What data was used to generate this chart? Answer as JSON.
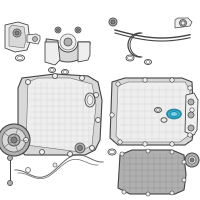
{
  "background_color": "#ffffff",
  "fig_width": 2.0,
  "fig_height": 2.0,
  "dpi": 100,
  "line_color": "#999999",
  "dark_line": "#666666",
  "darker_line": "#444444",
  "highlight_color": "#4ab8cc",
  "highlight_inner": "#7ad4e8",
  "light_gray": "#d8d8d8",
  "mid_gray": "#b0b0b0",
  "dark_gray": "#808080",
  "very_light": "#eeeeee"
}
